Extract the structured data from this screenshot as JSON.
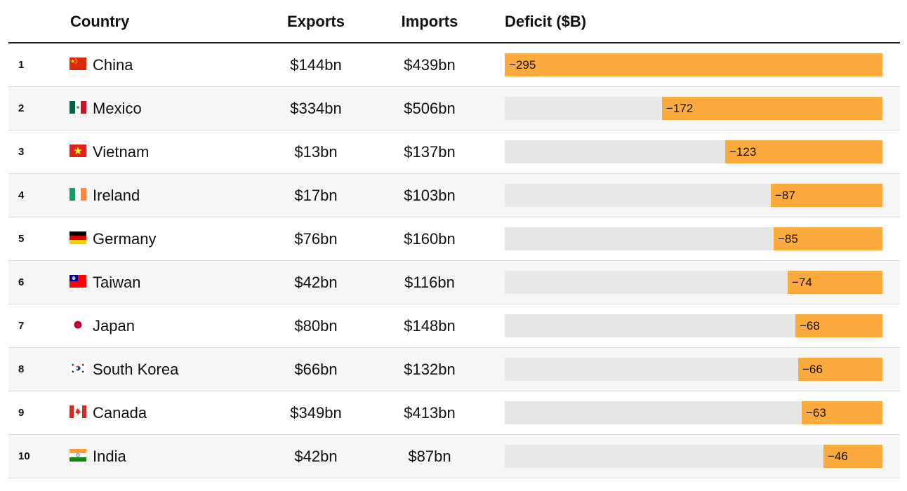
{
  "headers": {
    "country": "Country",
    "exports": "Exports",
    "imports": "Imports",
    "deficit": "Deficit ($B)"
  },
  "chart_data": {
    "type": "bar",
    "title": "",
    "xlabel": "Deficit ($B)",
    "ylabel": "",
    "xlim": [
      -295,
      0
    ],
    "categories": [
      "China",
      "Mexico",
      "Vietnam",
      "Ireland",
      "Germany",
      "Taiwan",
      "Japan",
      "South Korea",
      "Canada",
      "India"
    ],
    "values": [
      -295,
      -172,
      -123,
      -87,
      -85,
      -74,
      -68,
      -66,
      -63,
      -46
    ]
  },
  "rows": [
    {
      "rank": "1",
      "flag": "china-flag-icon",
      "country": "China",
      "exports": "$144bn",
      "imports": "$439bn",
      "deficit": -295,
      "deficit_label": "−295"
    },
    {
      "rank": "2",
      "flag": "mexico-flag-icon",
      "country": "Mexico",
      "exports": "$334bn",
      "imports": "$506bn",
      "deficit": -172,
      "deficit_label": "−172"
    },
    {
      "rank": "3",
      "flag": "vietnam-flag-icon",
      "country": "Vietnam",
      "exports": "$13bn",
      "imports": "$137bn",
      "deficit": -123,
      "deficit_label": "−123"
    },
    {
      "rank": "4",
      "flag": "ireland-flag-icon",
      "country": "Ireland",
      "exports": "$17bn",
      "imports": "$103bn",
      "deficit": -87,
      "deficit_label": "−87"
    },
    {
      "rank": "5",
      "flag": "germany-flag-icon",
      "country": "Germany",
      "exports": "$76bn",
      "imports": "$160bn",
      "deficit": -85,
      "deficit_label": "−85"
    },
    {
      "rank": "6",
      "flag": "taiwan-flag-icon",
      "country": "Taiwan",
      "exports": "$42bn",
      "imports": "$116bn",
      "deficit": -74,
      "deficit_label": "−74"
    },
    {
      "rank": "7",
      "flag": "japan-flag-icon",
      "country": "Japan",
      "exports": "$80bn",
      "imports": "$148bn",
      "deficit": -68,
      "deficit_label": "−68"
    },
    {
      "rank": "8",
      "flag": "south-korea-flag-icon",
      "country": "South Korea",
      "exports": "$66bn",
      "imports": "$132bn",
      "deficit": -66,
      "deficit_label": "−66"
    },
    {
      "rank": "9",
      "flag": "canada-flag-icon",
      "country": "Canada",
      "exports": "$349bn",
      "imports": "$413bn",
      "deficit": -63,
      "deficit_label": "−63"
    },
    {
      "rank": "10",
      "flag": "india-flag-icon",
      "country": "India",
      "exports": "$42bn",
      "imports": "$87bn",
      "deficit": -46,
      "deficit_label": "−46"
    }
  ],
  "colors": {
    "bar": "#fbab3d",
    "track": "#e6e6e6"
  }
}
